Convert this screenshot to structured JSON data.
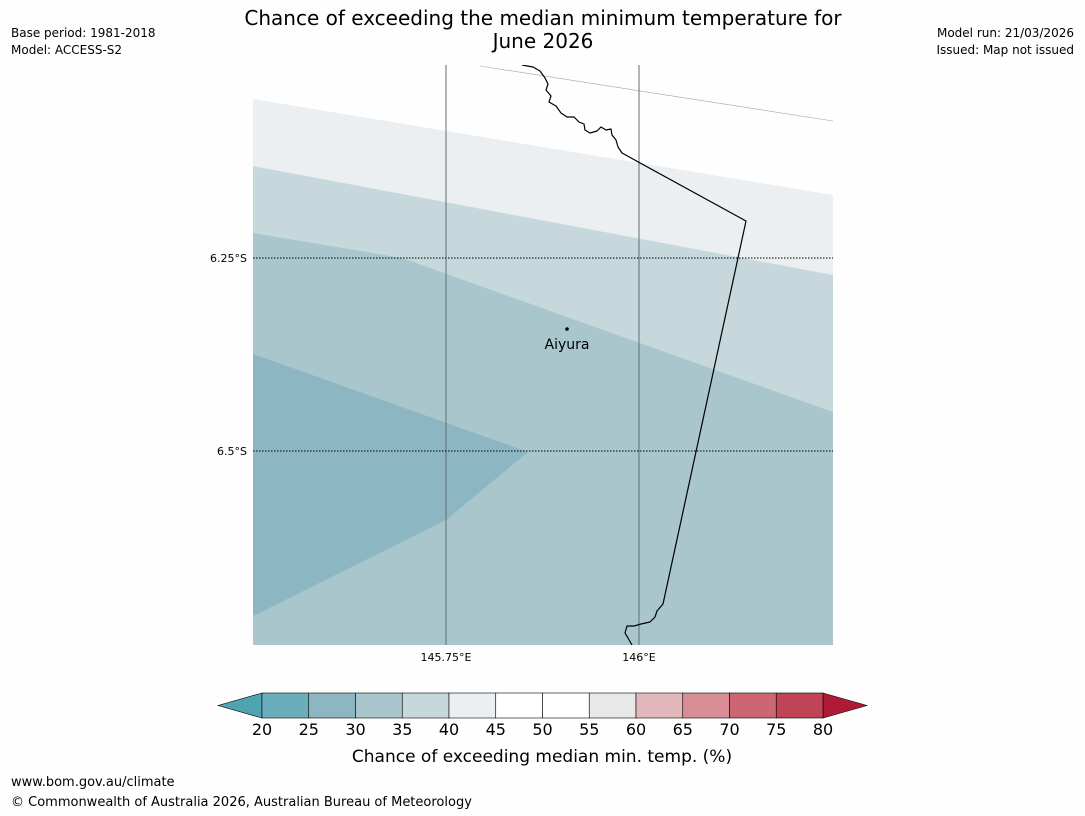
{
  "header": {
    "title_line1": "Chance of exceeding the median minimum temperature for",
    "title_line2": "June 2026",
    "base_period": "Base period: 1981-2018",
    "model": "Model: ACCESS-S2",
    "model_run": "Model run: 21/03/2026",
    "issued": "Issued: Map not issued"
  },
  "map": {
    "lat_labels": [
      "6.25°S",
      "6.5°S"
    ],
    "lon_labels": [
      "145.75°E",
      "146°E"
    ],
    "place": {
      "name": "Aiyura"
    },
    "colors": {
      "band_40_45": "#ebeff2",
      "band_35_40": "#c7d8dc",
      "band_30_35": "#a8c6cb",
      "band_25_30": "#8db6c3"
    }
  },
  "colorbar": {
    "ticks": [
      "20",
      "25",
      "30",
      "35",
      "40",
      "45",
      "50",
      "55",
      "60",
      "65",
      "70",
      "75",
      "80"
    ],
    "low_extend_color": "#4fa3b2",
    "high_extend_color": "#b01a35",
    "colors": [
      "#6baebb",
      "#8db6c3",
      "#a8c6cb",
      "#c7d8dc",
      "#ebeff2",
      "#ffffff",
      "#ffffff",
      "#e8e8e8",
      "#e3b8bd",
      "#d88d96",
      "#cc6673",
      "#c04455"
    ],
    "title": "Chance of exceeding median min. temp. (%)"
  },
  "footer": {
    "url": "www.bom.gov.au/climate",
    "copyright": "© Commonwealth of Australia 2026, Australian Bureau of Meteorology"
  }
}
